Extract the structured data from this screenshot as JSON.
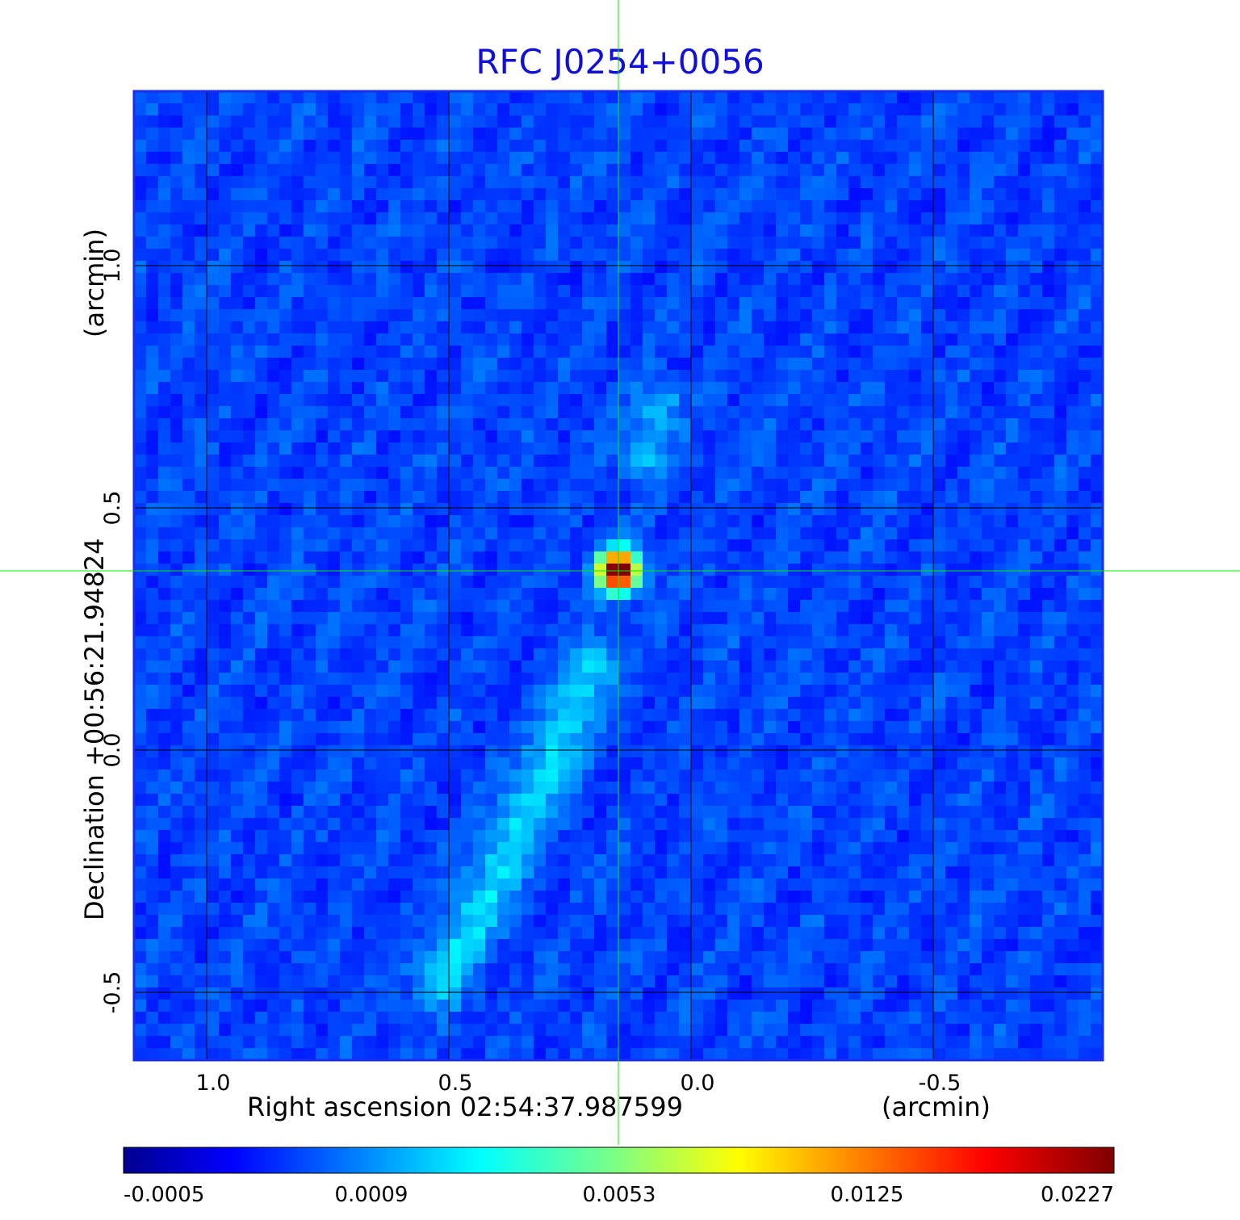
{
  "title": "RFC J0254+0056",
  "chart_data": {
    "type": "heatmap",
    "title": "RFC J0254+0056",
    "xlabel": "Right ascension  02:54:37.987599",
    "xunit": "(arcmin)",
    "ylabel": "Declination  +00:56:21.94824",
    "yunit": "(arcmin)",
    "xlim": [
      1.15,
      -0.85
    ],
    "ylim": [
      -0.64,
      1.36
    ],
    "xticks": [
      1.0,
      0.5,
      0.0,
      -0.5
    ],
    "xtick_labels": [
      "1.0",
      "0.5",
      "0.0",
      "-0.5"
    ],
    "yticks": [
      -0.5,
      0.0,
      0.5,
      1.0
    ],
    "ytick_labels": [
      "-0.5",
      "0.0",
      "0.5",
      "1.0"
    ],
    "grid": true,
    "crosshair": {
      "x": 0.15,
      "y": 0.37,
      "color": "#00ee00"
    },
    "colormap": "jet",
    "colorbar": {
      "tick_labels": [
        "-0.0005",
        "0.0009",
        "0.0053",
        "0.0125",
        "0.0227"
      ],
      "min": -0.0005,
      "max": 0.0227
    },
    "features": {
      "core": {
        "x": 0.15,
        "y": 0.37,
        "peak": 0.0227
      },
      "jet_ridge": [
        [
          0.2,
          0.18
        ],
        [
          0.27,
          0.02
        ],
        [
          0.34,
          -0.12
        ],
        [
          0.42,
          -0.29
        ],
        [
          0.52,
          -0.48
        ]
      ],
      "jet_level": 0.0011,
      "counterjet_ridge": [
        [
          0.1,
          0.6
        ],
        [
          0.06,
          0.72
        ]
      ],
      "counterjet_level": 0.0008
    }
  }
}
